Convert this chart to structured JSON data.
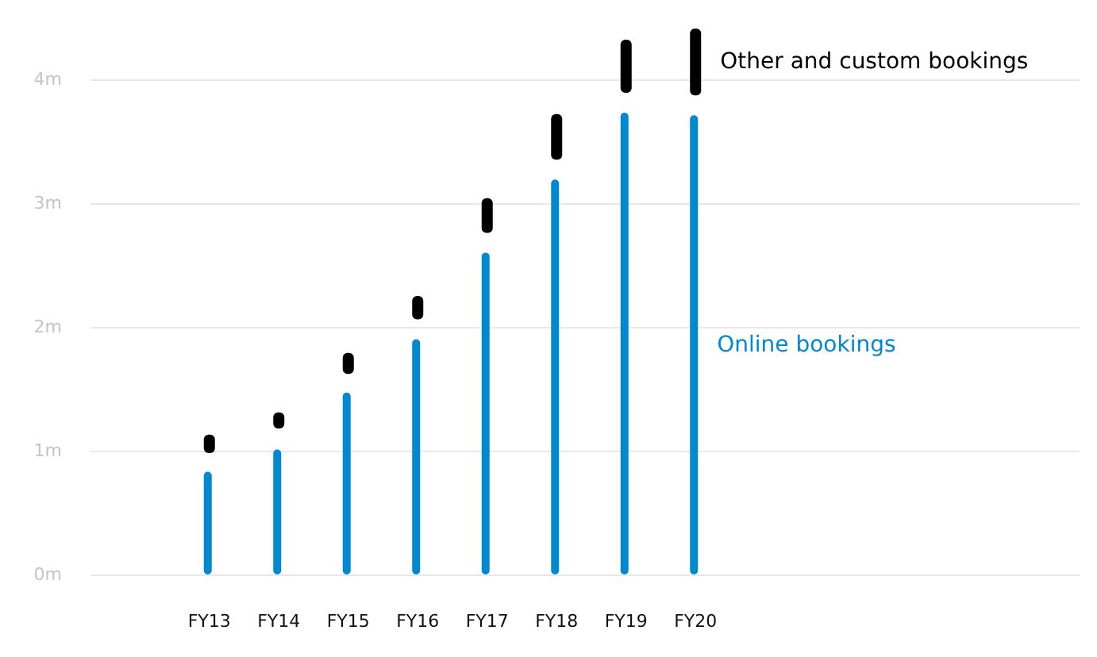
{
  "chart_data": {
    "type": "bar",
    "categories": [
      "FY13",
      "FY14",
      "FY15",
      "FY16",
      "FY17",
      "FY18",
      "FY19",
      "FY20"
    ],
    "series": [
      {
        "name": "Online bookings",
        "color": "#0088d1",
        "values": [
          0.83,
          1.01,
          1.47,
          1.9,
          2.6,
          3.19,
          3.73,
          3.71
        ]
      },
      {
        "name": "Other and custom bookings",
        "color": "#000000",
        "base": [
          0.98,
          1.18,
          1.62,
          2.06,
          2.76,
          3.35,
          3.89,
          3.87
        ],
        "values": [
          0.15,
          0.13,
          0.17,
          0.19,
          0.28,
          0.37,
          0.43,
          0.54
        ]
      }
    ],
    "ylim": [
      0,
      4.41
    ],
    "yticks": [
      {
        "value": 0,
        "label": "0m"
      },
      {
        "value": 1,
        "label": "1m"
      },
      {
        "value": 2,
        "label": "2m"
      },
      {
        "value": 3,
        "label": "3m"
      },
      {
        "value": 4,
        "label": "4m"
      }
    ],
    "grid": "y",
    "legend": false
  }
}
